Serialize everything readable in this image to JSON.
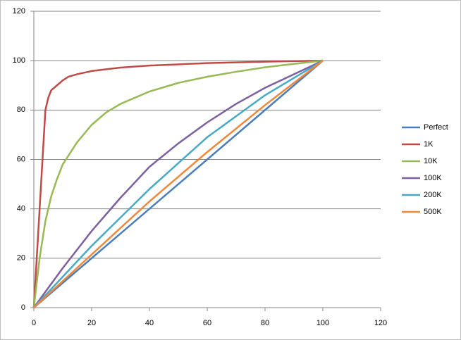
{
  "chart_data": {
    "type": "scatter-line",
    "xlim": [
      0,
      120
    ],
    "xticks": [
      0,
      20,
      40,
      60,
      80,
      100,
      120
    ],
    "ylim": [
      0,
      120
    ],
    "yticks": [
      0,
      20,
      40,
      60,
      80,
      100,
      120
    ],
    "grid": true,
    "legend": "right",
    "series": [
      {
        "name": "Perfect",
        "color": "#4a7ebb",
        "x": [
          0,
          100
        ],
        "values": [
          0,
          100
        ]
      },
      {
        "name": "1K",
        "color": "#be4b48",
        "x": [
          0,
          2,
          4,
          5,
          6,
          8,
          10,
          12,
          15,
          20,
          30,
          40,
          60,
          80,
          100
        ],
        "values": [
          0,
          40,
          80,
          85,
          88,
          90,
          92,
          93.5,
          94.5,
          95.8,
          97.2,
          98,
          99,
          99.6,
          100
        ]
      },
      {
        "name": "10K",
        "color": "#98b954",
        "x": [
          0,
          2,
          4,
          6,
          8,
          10,
          15,
          20,
          25,
          30,
          40,
          50,
          60,
          70,
          80,
          90,
          100
        ],
        "values": [
          0,
          20,
          35,
          45,
          52,
          58,
          67,
          74,
          79,
          82.5,
          87.5,
          91,
          93.5,
          95.5,
          97.3,
          98.7,
          100
        ]
      },
      {
        "name": "100K",
        "color": "#7d60a0",
        "x": [
          0,
          10,
          20,
          30,
          40,
          50,
          60,
          70,
          80,
          90,
          100
        ],
        "values": [
          0,
          16,
          31,
          44.5,
          57,
          66.5,
          75,
          82.5,
          89,
          94.5,
          100
        ]
      },
      {
        "name": "200K",
        "color": "#46aac5",
        "x": [
          0,
          20,
          40,
          60,
          80,
          100
        ],
        "values": [
          0,
          25,
          48,
          69,
          86,
          100
        ]
      },
      {
        "name": "500K",
        "color": "#f0883c",
        "x": [
          0,
          20,
          40,
          60,
          80,
          100
        ],
        "values": [
          0,
          21.5,
          43,
          63,
          82,
          100
        ]
      }
    ]
  }
}
